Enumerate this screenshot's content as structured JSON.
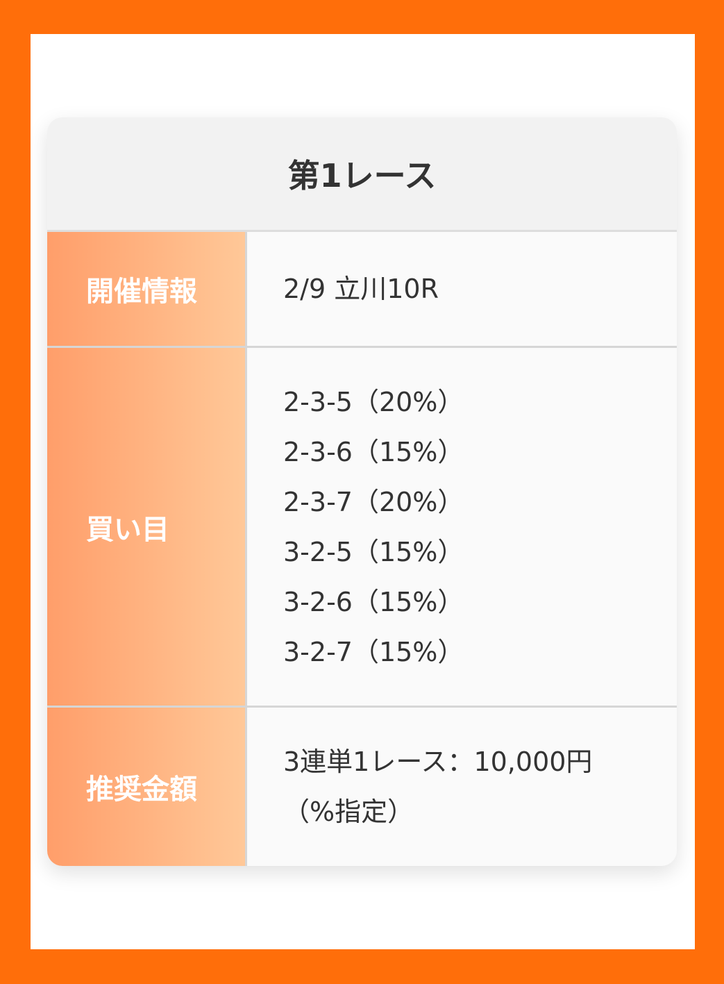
{
  "title": "第1レース",
  "rows": [
    {
      "label": "開催情報",
      "values": [
        "2/9 立川10R"
      ]
    },
    {
      "label": "買い目",
      "values": [
        "2-3-5（20%）",
        "2-3-6（15%）",
        "2-3-7（20%）",
        "3-2-5（15%）",
        "3-2-6（15%）",
        "3-2-7（15%）"
      ]
    },
    {
      "label": "推奨金額",
      "values": [
        "3連単1レース：10,000円",
        "（%指定）"
      ]
    }
  ],
  "colors": {
    "frame": "#ff6e0a",
    "label_gradient_start": "#ff9e6a",
    "label_gradient_end": "#ffc898"
  }
}
